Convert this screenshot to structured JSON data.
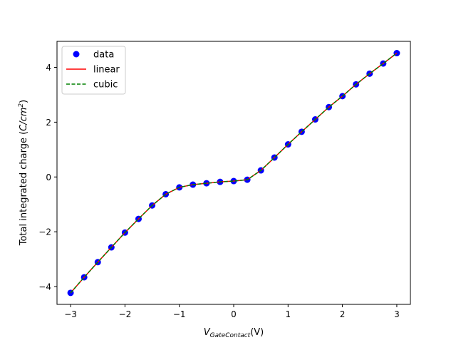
{
  "chart_data": {
    "type": "line",
    "title": "",
    "xlabel_main": "V",
    "xlabel_sub": "GateContact",
    "xlabel_unit": "(V)",
    "ylabel_prefix": "Total integrated charge (",
    "ylabel_unit": "C/cm",
    "ylabel_exp": "2",
    "ylabel_suffix": ")",
    "xlim": [
      -3.25,
      3.25
    ],
    "ylim": [
      -4.65,
      4.95
    ],
    "xticks": [
      -3,
      -2,
      -1,
      0,
      1,
      2,
      3
    ],
    "xtick_labels": [
      "−3",
      "−2",
      "−1",
      "0",
      "1",
      "2",
      "3"
    ],
    "yticks": [
      -4,
      -2,
      0,
      2,
      4
    ],
    "ytick_labels": [
      "−4",
      "−2",
      "0",
      "2",
      "4"
    ],
    "grid": false,
    "legend_position": "top-left",
    "x": [
      -3.0,
      -2.75,
      -2.5,
      -2.25,
      -2.0,
      -1.75,
      -1.5,
      -1.25,
      -1.0,
      -0.75,
      -0.5,
      -0.25,
      0.0,
      0.25,
      0.5,
      0.75,
      1.0,
      1.25,
      1.5,
      1.75,
      2.0,
      2.25,
      2.5,
      2.75,
      3.0
    ],
    "series": [
      {
        "name": "data",
        "style": "markers",
        "color": "#0000ff",
        "values": [
          -4.23,
          -3.66,
          -3.11,
          -2.57,
          -2.03,
          -1.53,
          -1.04,
          -0.63,
          -0.38,
          -0.28,
          -0.23,
          -0.18,
          -0.15,
          -0.1,
          0.24,
          0.71,
          1.19,
          1.65,
          2.1,
          2.55,
          2.95,
          3.38,
          3.77,
          4.14,
          4.52
        ]
      },
      {
        "name": "linear",
        "style": "solid",
        "color": "#ff0000",
        "values": [
          -4.23,
          -3.66,
          -3.11,
          -2.57,
          -2.03,
          -1.53,
          -1.04,
          -0.63,
          -0.38,
          -0.28,
          -0.23,
          -0.18,
          -0.15,
          -0.1,
          0.24,
          0.71,
          1.19,
          1.65,
          2.1,
          2.55,
          2.95,
          3.38,
          3.77,
          4.14,
          4.52
        ]
      },
      {
        "name": "cubic",
        "style": "dashed",
        "color": "#008000",
        "values": [
          -4.23,
          -3.66,
          -3.11,
          -2.57,
          -2.03,
          -1.53,
          -1.04,
          -0.63,
          -0.38,
          -0.28,
          -0.23,
          -0.18,
          -0.15,
          -0.1,
          0.24,
          0.71,
          1.19,
          1.65,
          2.1,
          2.55,
          2.95,
          3.38,
          3.77,
          4.14,
          4.52
        ]
      }
    ]
  }
}
